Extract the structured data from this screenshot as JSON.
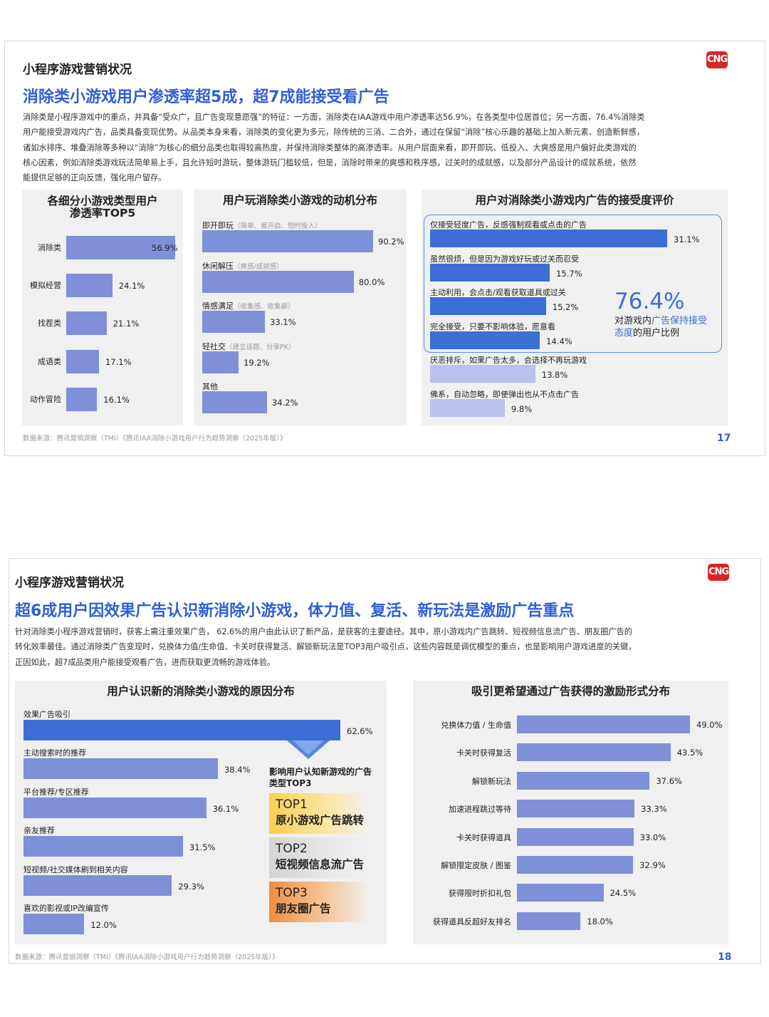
{
  "slide1": {
    "section": "小程序游戏营销状况",
    "logo": "CNG",
    "headline": "消除类小游戏用户渗透率超5成，超7成能接受看广告",
    "body": [
      "消除类是小程序游戏中的重点，并具备“受众广，且广告变现意愿强”的特征：一方面，消除类在IAA游戏中用户渗透率达56.9%，在各类型中位居首位；另一方面，76.4%消除类",
      "用户能接受游戏内广告，品类具备变现优势。从品类本身来看，消除类的变化更为多元，除传统的三消、二合外，通过在保留“消除”核心乐趣的基础上加入新元素、创造新鲜感，",
      "诸如水排序、堆叠消除等多种以“消除”为核心的细分品类也取得较高热度，并保持消除类整体的高渗透率。从用户层面来看，即开即玩、低投入、大爽感是用户偏好此类游戏的",
      "核心因素，例如消除类游戏玩法简单易上手，且允许短时游玩，整体游玩门槛较低，但是，消除时带来的爽感和秩序感，过关时的成就感，以及部分产品设计的成就系统，依然",
      "能提供足够的正向反馈，强化用户留存。"
    ],
    "source": "数据来源：腾讯营销洞察（TMI）《腾讯IAA消除小游戏用户行为趋势洞察（2025年版）》",
    "page": "17"
  },
  "slide2": {
    "section": "小程序游戏营销状况",
    "logo": "CNG",
    "headline": "超6成用户因效果广告认识新消除小游戏，体力值、复活、新玩法是激励广告重点",
    "body": [
      "针对消除类小程序游戏营销时，获客上需注重效果广告，  62.6%的用户由此认识了新产品，是获客的主要途径。其中，原小游戏内广告跳转、短视频信息流广告、朋友圈广告的",
      "转化效率最佳。通过消除类广告变现时，兑换体力值/生命值、卡关时获得复活、解锁新玩法是TOP3用户吸引点，这些内容既是调优模型的重点，也是影响用户游戏进度的关键，",
      "正因如此，超7成品类用户能接受观看广告，进而获取更流畅的游戏体验。"
    ],
    "source": "数据来源：腾讯营销洞察（TMI）《腾讯IAA消除小游戏用户行为趋势洞察（2025年版）》",
    "page": "18",
    "top3_title": "影响用户认知新游戏的广告类型TOP3",
    "top3": [
      {
        "rank": "TOP1",
        "name": "原小游戏广告跳转"
      },
      {
        "rank": "TOP2",
        "name": "短视频信息流广告"
      },
      {
        "rank": "TOP3",
        "name": "朋友圈广告"
      }
    ]
  },
  "callout": {
    "value": "76.4%",
    "pre": "对游戏内",
    "highlight": "广告保持接受态度",
    "post": "的用户比例"
  },
  "chart_data": [
    {
      "type": "bar",
      "title": "各细分小游戏类型用户渗透率TOP5",
      "categories": [
        "消除类",
        "模拟经营",
        "找茬类",
        "成语类",
        "动作冒险"
      ],
      "values": [
        56.9,
        24.1,
        21.1,
        17.1,
        16.1
      ],
      "labels": [
        "56.9%",
        "24.1%",
        "21.1%",
        "17.1%",
        "16.1%"
      ],
      "unit": "%",
      "orientation": "horizontal"
    },
    {
      "type": "bar",
      "title": "用户玩消除类小游戏的动机分布",
      "categories": [
        "即开即玩",
        "休闲解压",
        "情感满足",
        "轻社交",
        "其他"
      ],
      "notes": [
        "（简单、易开启、短时投入）",
        "（爽感/成就感）",
        "（收集感、收集癖）",
        "（建立话题、分享PK）",
        ""
      ],
      "values": [
        90.2,
        80.0,
        33.1,
        19.2,
        34.2
      ],
      "labels": [
        "90.2%",
        "80.0%",
        "33.1%",
        "19.2%",
        "34.2%"
      ],
      "unit": "%",
      "orientation": "horizontal"
    },
    {
      "type": "bar",
      "title": "用户对消除类小游戏内广告的接受度评价",
      "categories": [
        "仅接受轻度广告，反感强制观看或点击的广告",
        "虽然很烦，但是因为游戏好玩或过关而忍受",
        "主动利用，会点击/观看获取道具或过关",
        "完全接受，只要不影响体验，愿意看",
        "厌恶排斥，如果广告太多，会选择不再玩游戏",
        "佛系，自动忽略，即使弹出也从不点击广告"
      ],
      "values": [
        31.1,
        15.7,
        15.2,
        14.4,
        13.8,
        9.8
      ],
      "labels": [
        "31.1%",
        "15.7%",
        "15.2%",
        "14.4%",
        "13.8%",
        "9.8%"
      ],
      "unit": "%",
      "orientation": "horizontal"
    },
    {
      "type": "bar",
      "title": "用户认识新的消除类小游戏的原因分布",
      "categories": [
        "效果广告吸引",
        "主动搜索时的推荐",
        "平台推荐/专区推荐",
        "亲友推荐",
        "短视频/社交媒体刷到相关内容",
        "喜欢的影视或IP改编宣传"
      ],
      "values": [
        62.6,
        38.4,
        36.1,
        31.5,
        29.3,
        12.0
      ],
      "labels": [
        "62.6%",
        "38.4%",
        "36.1%",
        "31.5%",
        "29.3%",
        "12.0%"
      ],
      "unit": "%",
      "orientation": "horizontal"
    },
    {
      "type": "bar",
      "title": "吸引更希望通过广告获得的激励形式分布",
      "categories": [
        "兑换体力值 / 生命值",
        "卡关时获得复活",
        "解锁新玩法",
        "加速进程跳过等待",
        "卡关时获得道具",
        "解锁限定皮肤 / 图鉴",
        "获得限时折扣礼包",
        "获得道具反超好友排名"
      ],
      "values": [
        49.0,
        43.5,
        37.6,
        33.3,
        33.0,
        32.9,
        24.5,
        18.0
      ],
      "labels": [
        "49.0%",
        "43.5%",
        "37.6%",
        "33.3%",
        "33.0%",
        "32.9%",
        "24.5%",
        "18.0%"
      ],
      "unit": "%",
      "orientation": "horizontal"
    }
  ]
}
